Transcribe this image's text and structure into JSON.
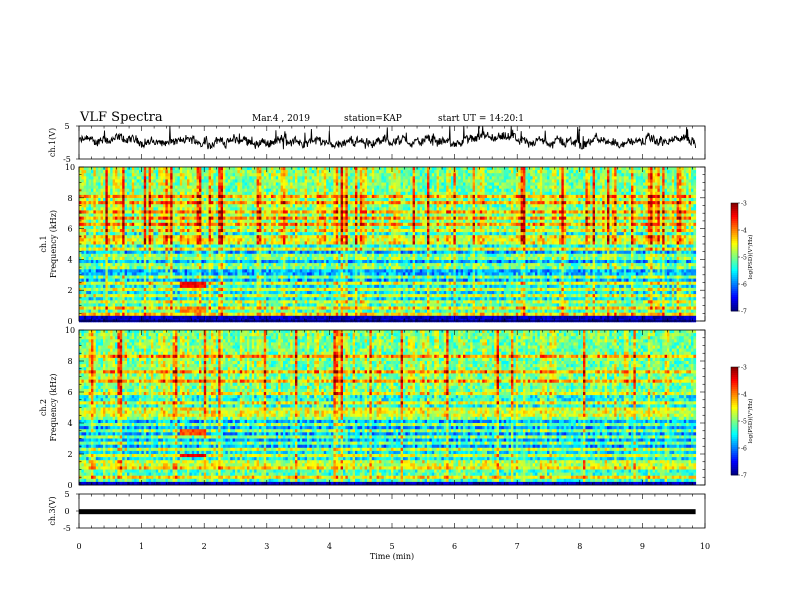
{
  "header": {
    "title": "VLF Spectra",
    "date": "Mar.4 , 2019",
    "station": "station=KAP",
    "start": "start UT = 14:20:1"
  },
  "chart_data": {
    "type": "heatmap",
    "xlabel": "Time (min)",
    "xlim": [
      0,
      10
    ],
    "x_ticks": [
      "0",
      "1",
      "2",
      "3",
      "4",
      "5",
      "6",
      "7",
      "8",
      "9",
      "10"
    ],
    "data_end_min": 9.85,
    "panels": [
      {
        "name": "ch1-voltage",
        "type": "line",
        "ylabel": "ch.1(V)",
        "ylim": [
          -5,
          5
        ],
        "y_ticks": [
          "5",
          "-5"
        ],
        "approx_level": 0.3,
        "approx_fluctuation": 3.5
      },
      {
        "name": "ch1-spectrogram",
        "type": "heatmap",
        "ylabel_top": "ch.1",
        "ylabel": "Frequency (kHz)",
        "ylim": [
          0,
          10
        ],
        "y_ticks": [
          "0",
          "2",
          "4",
          "6",
          "8",
          "10"
        ],
        "colorbar": {
          "label": "log(PSD)(V²/Hz)",
          "range": [
            -7,
            -3
          ],
          "ticks": [
            "-3",
            "-4",
            "-5",
            "-6",
            "-7"
          ]
        },
        "horizontal_lines_khz": [
          0.3,
          0.5,
          0.9,
          1.3,
          1.7,
          2.1,
          2.4,
          2.8,
          3.4,
          3.6,
          4.0,
          4.3,
          4.7,
          5.0,
          5.2,
          5.4,
          5.8,
          6.2,
          6.7,
          7.0,
          7.6,
          8.1
        ],
        "features": [
          {
            "t_start_min": 1.6,
            "t_end_min": 2.0,
            "freq_khz": [
              2.1,
              2.5
            ],
            "level": -3.5
          },
          {
            "t_start_min": 1.6,
            "t_end_min": 2.0,
            "freq_khz": [
              0.6,
              0.9
            ],
            "level": -4.0
          },
          {
            "t_start_min": 1.6,
            "t_end_min": 2.0,
            "freq_khz": [
              5.0,
              5.4
            ],
            "level": -4.3
          }
        ]
      },
      {
        "name": "ch2-spectrogram",
        "type": "heatmap",
        "ylabel_top": "ch.2",
        "ylabel": "Frequency (kHz)",
        "ylim": [
          0,
          10
        ],
        "y_ticks": [
          "0",
          "2",
          "4",
          "6",
          "8",
          "10"
        ],
        "colorbar": {
          "label": "log(PSD)(V²/Hz)",
          "range": [
            -7,
            -3
          ],
          "ticks": [
            "-3",
            "-4",
            "-5",
            "-6",
            "-7"
          ]
        },
        "horizontal_lines_khz": [
          0.4,
          0.8,
          1.2,
          1.5,
          1.9,
          2.3,
          2.7,
          3.1,
          3.5,
          3.9,
          4.3,
          4.6,
          5.0,
          5.3,
          6.0,
          6.7,
          7.3,
          7.8,
          8.3
        ],
        "features": [
          {
            "t_start_min": 1.6,
            "t_end_min": 2.0,
            "freq_khz": [
              1.7,
              2.1
            ],
            "level": -3.4
          },
          {
            "t_start_min": 1.6,
            "t_end_min": 2.0,
            "freq_khz": [
              3.2,
              3.6
            ],
            "level": -3.8
          },
          {
            "t_start_min": 1.6,
            "t_end_min": 2.0,
            "freq_khz": [
              4.8,
              5.1
            ],
            "level": -4.2
          }
        ]
      },
      {
        "name": "ch3-voltage",
        "type": "line",
        "ylabel": "ch.3(V)",
        "ylim": [
          -5,
          5
        ],
        "y_ticks": [
          "5",
          "0",
          "-5"
        ],
        "approx_level": -0.2,
        "approx_fluctuation": 0.0
      }
    ]
  }
}
